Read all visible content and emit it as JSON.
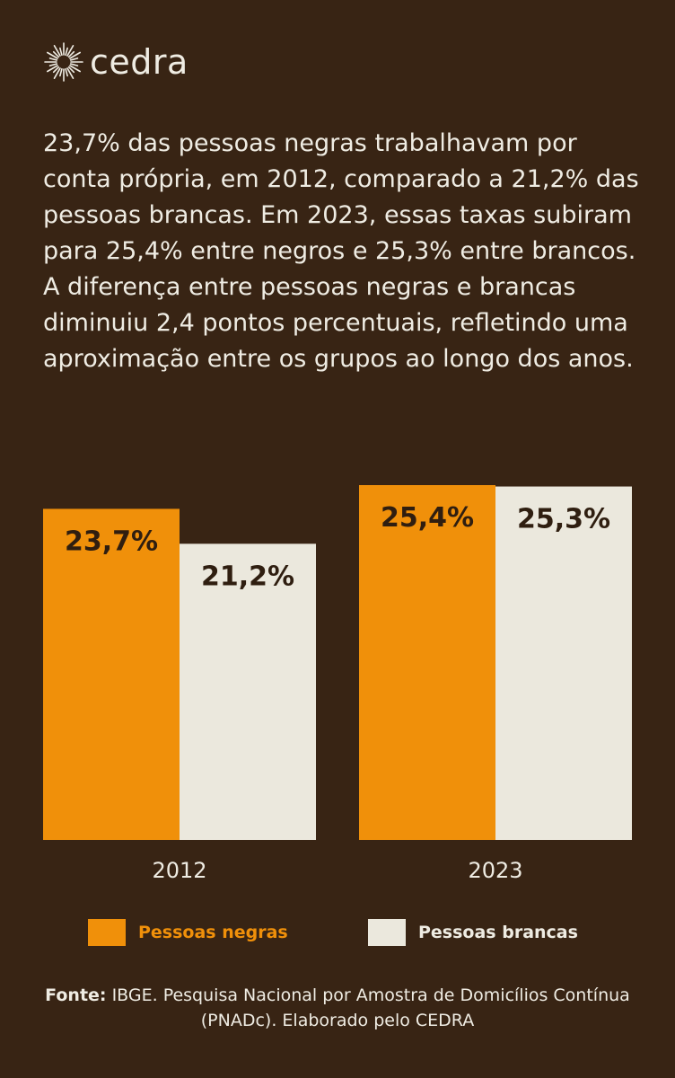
{
  "brand": {
    "name": "cedra",
    "icon": "sunburst-logo-icon"
  },
  "intro_text": "23,7% das pessoas negras trabalhavam por conta própria, em 2012, comparado a 21,2% das pessoas brancas. Em 2023, essas taxas subiram para 25,4% entre negros e 25,3% entre brancos. A diferença entre pessoas negras e brancas diminuiu 2,4 pontos percentuais, refletindo uma aproximação entre os grupos ao longo dos anos.",
  "colors": {
    "background": "#382414",
    "negras": "#f0900a",
    "brancas": "#ebe8dd",
    "text_light": "#efece3",
    "text_dark": "#2f1e10"
  },
  "chart_data": {
    "type": "bar",
    "categories": [
      "2012",
      "2023"
    ],
    "series": [
      {
        "name": "Pessoas negras",
        "values": [
          23.7,
          25.4
        ],
        "labels": [
          "23,7%",
          "25,4%"
        ]
      },
      {
        "name": "Pessoas brancas",
        "values": [
          21.2,
          25.3
        ],
        "labels": [
          "21,2%",
          "25,3%"
        ]
      }
    ],
    "ylim": [
      0,
      25.4
    ],
    "legend": "bottom"
  },
  "legend": {
    "negras_label": "Pessoas negras",
    "brancas_label": "Pessoas brancas"
  },
  "source": {
    "prefix": "Fonte:",
    "text": "IBGE. Pesquisa Nacional por Amostra de Domicílios Contínua (PNADc). Elaborado pelo CEDRA"
  }
}
